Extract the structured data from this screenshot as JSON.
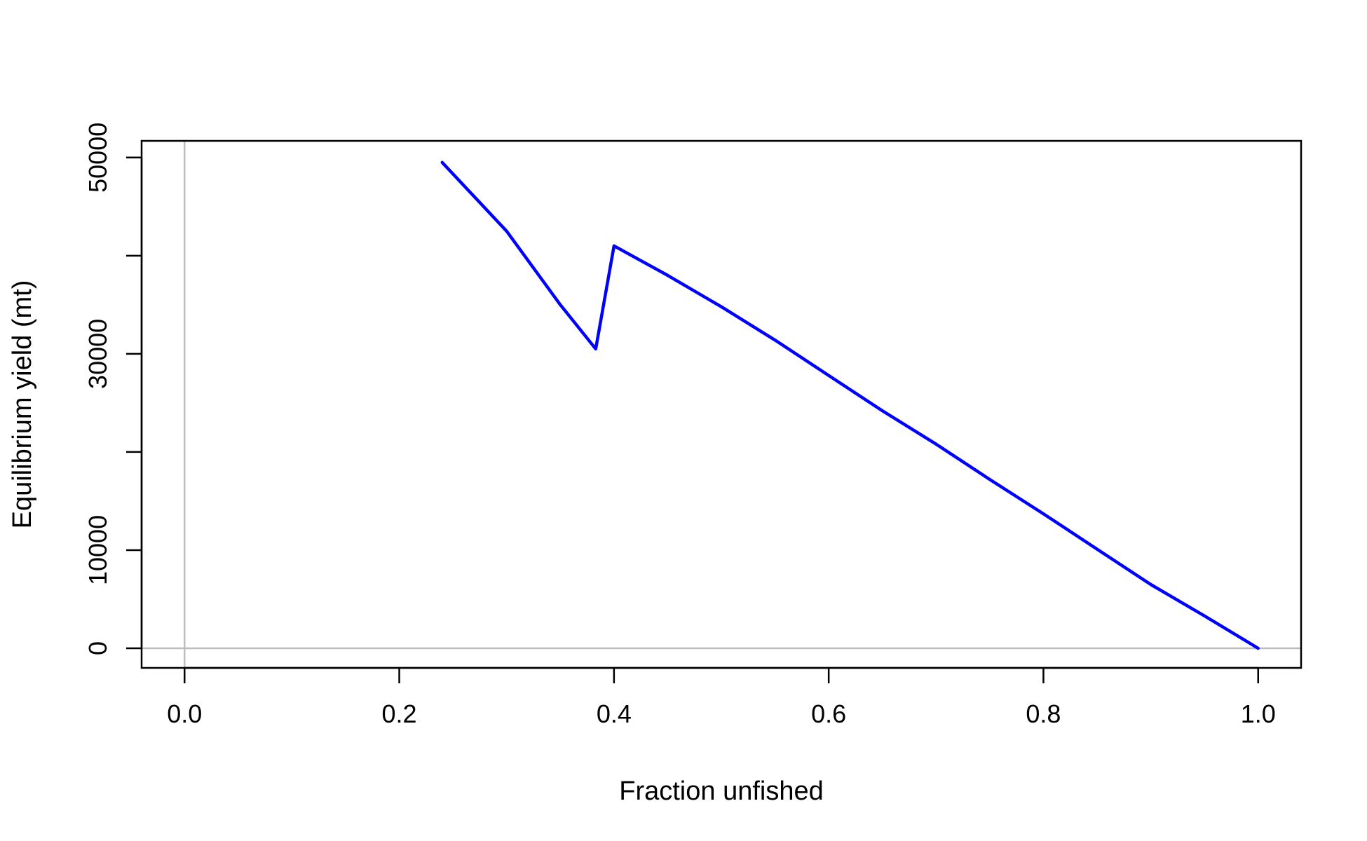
{
  "chart_data": {
    "type": "line",
    "title": "",
    "xlabel": "Fraction unfished",
    "ylabel": "Equilibrium yield (mt)",
    "xlim": [
      -0.04,
      1.04
    ],
    "ylim": [
      -2000,
      51700
    ],
    "x_ticks": [
      0.0,
      0.2,
      0.4,
      0.6,
      0.8,
      1.0
    ],
    "x_tick_labels": [
      "0.0",
      "0.2",
      "0.4",
      "0.6",
      "0.8",
      "1.0"
    ],
    "y_ticks": [
      0,
      10000,
      20000,
      30000,
      40000,
      50000
    ],
    "y_tick_labels": [
      "0",
      "10000",
      "",
      "30000",
      "",
      "50000"
    ],
    "reference_lines": {
      "x": 0,
      "y": 0,
      "color": "#bebebe"
    },
    "grid": false,
    "series": [
      {
        "color": "#0000ff",
        "x": [
          0.24,
          0.3,
          0.35,
          0.383,
          0.4,
          0.45,
          0.5,
          0.55,
          0.6,
          0.65,
          0.7,
          0.75,
          0.8,
          0.85,
          0.9,
          0.95,
          1.0
        ],
        "y": [
          49500,
          42500,
          35000,
          30500,
          41000,
          38000,
          34800,
          31400,
          27800,
          24200,
          20800,
          17200,
          13700,
          10100,
          6500,
          3300,
          0
        ]
      }
    ]
  }
}
